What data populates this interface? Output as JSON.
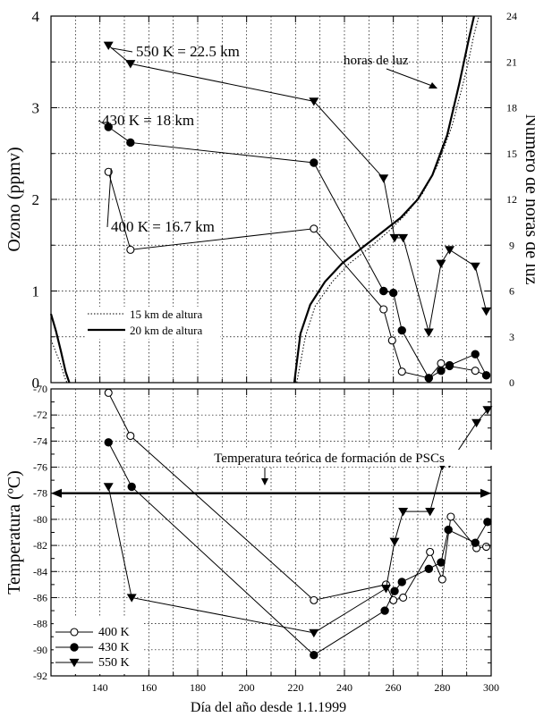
{
  "chart_data": [
    {
      "type": "line",
      "panel": "top",
      "xlim": [
        120,
        300
      ],
      "ylim": [
        0,
        4
      ],
      "ylim_right": [
        0,
        24
      ],
      "ylabel": "Ozono (ppmv)",
      "ylabel_right": "Número de horas de luz",
      "x_ticks": [
        140,
        160,
        180,
        200,
        220,
        240,
        260,
        280,
        300
      ],
      "y_ticks": [
        "0",
        "1",
        "2",
        "3",
        "4"
      ],
      "y_ticks_right": [
        "0",
        "3",
        "6",
        "9",
        "12",
        "15",
        "18",
        "21",
        "24"
      ],
      "grid": true,
      "series": [
        {
          "name": "400 K",
          "label": "400 K = 16.7 km",
          "marker": "open-circle",
          "x": [
            143.5,
            152.5,
            227.5,
            256,
            259.5,
            263.5,
            274.5,
            279.5,
            283,
            293.5,
            298
          ],
          "y": [
            2.3,
            1.45,
            1.68,
            0.8,
            0.46,
            0.12,
            0.05,
            0.21,
            0.18,
            0.13,
            0.08
          ]
        },
        {
          "name": "430 K",
          "label": "430 K = 18 km",
          "marker": "filled-circle",
          "x": [
            143.5,
            152.5,
            227.5,
            256,
            260,
            263.5,
            274.5,
            279.5,
            283,
            293.5,
            298
          ],
          "y": [
            2.79,
            2.62,
            2.4,
            1.0,
            0.98,
            0.57,
            0.05,
            0.13,
            0.19,
            0.31,
            0.08
          ]
        },
        {
          "name": "550 K",
          "label": "550 K = 22.5 km",
          "marker": "filled-triangle-down",
          "x": [
            143.5,
            152.5,
            227.5,
            256,
            260.5,
            264,
            274.5,
            279.5,
            283,
            293.5,
            298
          ],
          "y": [
            3.68,
            3.48,
            3.07,
            2.23,
            1.58,
            1.58,
            0.55,
            1.3,
            1.45,
            1.27,
            0.78
          ]
        }
      ],
      "daylight_series": [
        {
          "name": "15 km de altura",
          "style": "dotted",
          "segments": [
            {
              "x": [
                120,
                122,
                124,
                125.5,
                126.5
              ],
              "y": [
                2.8,
                2.0,
                1.2,
                0.4,
                0
              ]
            },
            {
              "x": [
                220.5,
                224,
                228,
                235,
                242,
                250,
                258,
                265,
                272,
                278,
                284,
                290,
                293,
                295
              ],
              "y": [
                0,
                3.0,
                5.0,
                6.6,
                7.8,
                8.8,
                9.9,
                11.0,
                12.4,
                14.2,
                16.8,
                20.5,
                22.8,
                24
              ]
            }
          ]
        },
        {
          "name": "20 km de altura",
          "style": "solid",
          "segments": [
            {
              "x": [
                120,
                122,
                124,
                126,
                127.5
              ],
              "y": [
                4.5,
                3.4,
                2.1,
                0.7,
                0
              ]
            },
            {
              "x": [
                219.5,
                222,
                226,
                232,
                239,
                247,
                255,
                263,
                270,
                276,
                282,
                287,
                291,
                293
              ],
              "y": [
                0,
                3.2,
                5.1,
                6.6,
                7.8,
                8.8,
                9.8,
                10.8,
                12.0,
                13.6,
                16.2,
                19.6,
                22.6,
                24
              ]
            }
          ]
        }
      ],
      "annotations": {
        "daylight": "horas de luz",
        "legend_15": "15 km de altura",
        "legend_20": "20 km de altura"
      }
    },
    {
      "type": "line",
      "panel": "bottom",
      "xlim": [
        120,
        300
      ],
      "ylim": [
        -92,
        -70
      ],
      "xlabel": "Día del año desde 1.1.1999",
      "ylabel": "Temperatura (ºC)",
      "x_ticks": [
        "140",
        "160",
        "180",
        "200",
        "220",
        "240",
        "260",
        "280",
        "300"
      ],
      "y_ticks": [
        "-70",
        "-72",
        "-74",
        "-76",
        "-78",
        "-80",
        "-82",
        "-84",
        "-86",
        "-88",
        "-90",
        "-92"
      ],
      "grid": true,
      "legend": "bottom-left",
      "series": [
        {
          "name": "400 K",
          "marker": "open-circle",
          "x": [
            143.5,
            152.5,
            227.5,
            257,
            260,
            264,
            275,
            280,
            283.5,
            294,
            298
          ],
          "y": [
            -70.3,
            -73.6,
            -86.2,
            -85.0,
            -86.2,
            -86.0,
            -82.5,
            -84.6,
            -79.8,
            -82.2,
            -82.1
          ]
        },
        {
          "name": "430 K",
          "marker": "filled-circle",
          "x": [
            143.5,
            153,
            227.5,
            256.5,
            260.5,
            263.5,
            274.5,
            279.5,
            282.5,
            293.5,
            298.5
          ],
          "y": [
            -74.1,
            -77.5,
            -90.4,
            -87.0,
            -85.5,
            -84.8,
            -83.8,
            -83.3,
            -80.8,
            -81.8,
            -80.2
          ]
        },
        {
          "name": "550 K",
          "marker": "filled-triangle-down",
          "x": [
            143.5,
            153,
            227.5,
            257,
            260.5,
            264,
            275,
            280,
            283,
            294,
            298.5
          ],
          "y": [
            -77.5,
            -86.0,
            -88.7,
            -85.3,
            -81.7,
            -79.4,
            -79.4,
            -75.9,
            -75.7,
            -72.6,
            -71.6
          ]
        }
      ],
      "threshold": {
        "y": -78,
        "label": "Temperatura teórica de formación de PSCs"
      }
    }
  ]
}
